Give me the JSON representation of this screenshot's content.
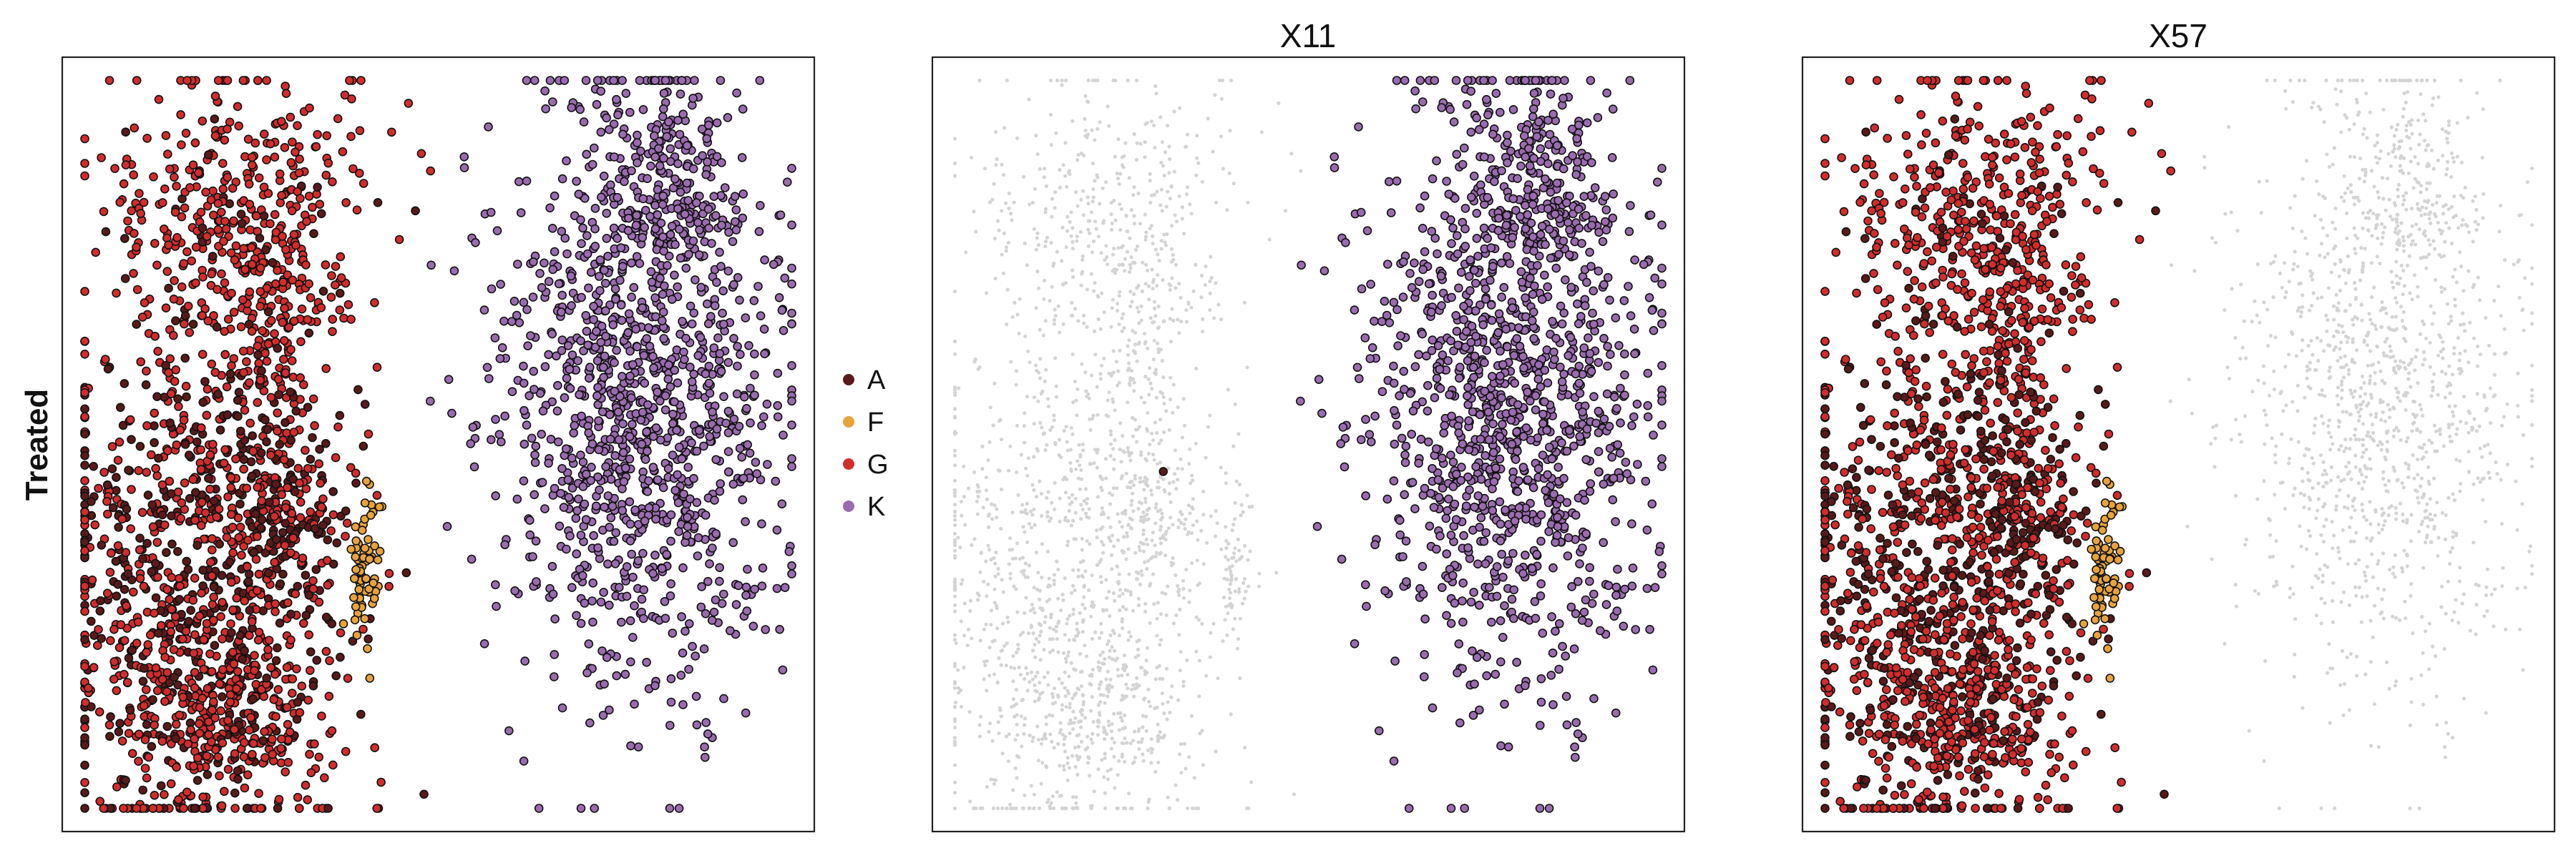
{
  "figure": {
    "row_label": "Treated"
  },
  "chart_data": [
    {
      "type": "scatter",
      "title": "",
      "xlabel": "",
      "ylabel": "Treated",
      "grid": false,
      "highlight": [
        "A",
        "F",
        "G",
        "K"
      ]
    },
    {
      "type": "scatter",
      "title": "X11",
      "xlabel": "",
      "ylabel": "",
      "grid": false,
      "highlight": [
        "K"
      ],
      "extra_highlight_points": [
        {
          "x": 0.307,
          "y": 0.535,
          "group": "A"
        }
      ]
    },
    {
      "type": "scatter",
      "title": "X57",
      "xlabel": "",
      "ylabel": "",
      "grid": false,
      "highlight": [
        "A",
        "F",
        "G"
      ]
    }
  ],
  "legend": {
    "placement": "between-panel-1-and-2",
    "items": [
      {
        "label": "A",
        "color": "#5a1a1a"
      },
      {
        "label": "F",
        "color": "#e8a33a"
      },
      {
        "label": "G",
        "color": "#d42c2c"
      },
      {
        "label": "K",
        "color": "#9b6bb0"
      }
    ]
  },
  "background_point_color": "#d4d4d4",
  "point_edge_color": "#111111"
}
